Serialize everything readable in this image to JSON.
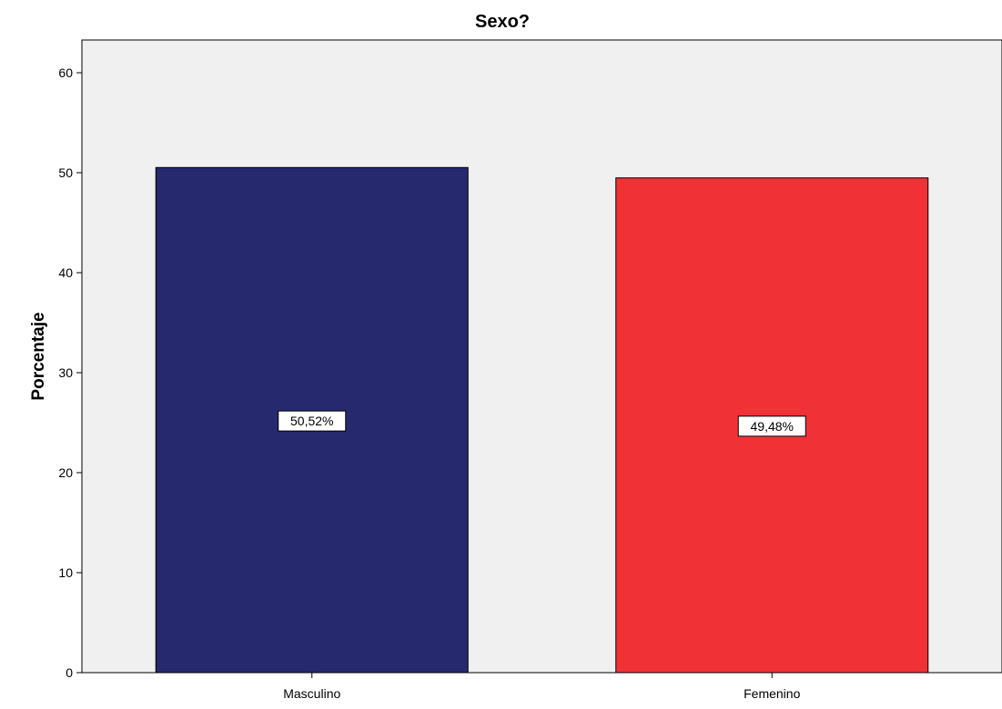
{
  "chart_data": {
    "type": "bar",
    "title": "Sexo?",
    "xlabel": "",
    "ylabel": "Porcentaje",
    "categories": [
      "Masculino",
      "Femenino"
    ],
    "values": [
      50.52,
      49.48
    ],
    "data_labels": [
      "50,52%",
      "49,48%"
    ],
    "colors": [
      "#26296e",
      "#f03237"
    ],
    "plot_background": "#f0f0f0",
    "ylim": [
      0,
      63
    ],
    "yticks": [
      0,
      10,
      20,
      30,
      40,
      50,
      60
    ],
    "ytick_labels": [
      "0",
      "10",
      "20",
      "30",
      "40",
      "50",
      "60"
    ],
    "grid": false,
    "legend": "none"
  }
}
